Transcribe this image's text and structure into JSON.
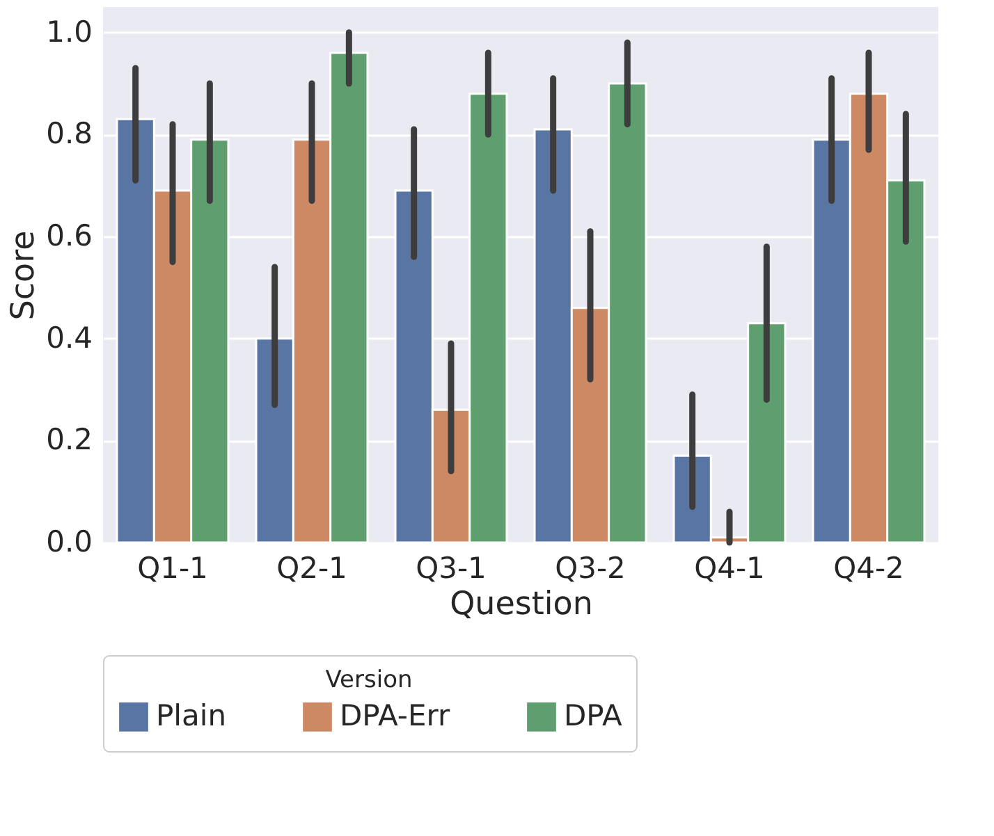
{
  "chart_data": {
    "type": "bar",
    "xlabel": "Question",
    "ylabel": "Score",
    "legend_title": "Version",
    "categories": [
      "Q1-1",
      "Q2-1",
      "Q3-1",
      "Q3-2",
      "Q4-1",
      "Q4-2"
    ],
    "series": [
      {
        "name": "Plain",
        "color": "#5875a4",
        "values": [
          0.83,
          0.4,
          0.69,
          0.81,
          0.17,
          0.79
        ],
        "errors": [
          [
            0.71,
            0.93
          ],
          [
            0.27,
            0.54
          ],
          [
            0.56,
            0.81
          ],
          [
            0.69,
            0.91
          ],
          [
            0.07,
            0.29
          ],
          [
            0.67,
            0.91
          ]
        ]
      },
      {
        "name": "DPA-Err",
        "color": "#cc8963",
        "values": [
          0.69,
          0.79,
          0.26,
          0.46,
          0.01,
          0.88
        ],
        "errors": [
          [
            0.55,
            0.82
          ],
          [
            0.67,
            0.9
          ],
          [
            0.14,
            0.39
          ],
          [
            0.32,
            0.61
          ],
          [
            0.0,
            0.06
          ],
          [
            0.77,
            0.96
          ]
        ]
      },
      {
        "name": "DPA",
        "color": "#5f9e6e",
        "values": [
          0.79,
          0.96,
          0.88,
          0.9,
          0.43,
          0.71
        ],
        "errors": [
          [
            0.67,
            0.9
          ],
          [
            0.9,
            1.0
          ],
          [
            0.8,
            0.96
          ],
          [
            0.82,
            0.98
          ],
          [
            0.28,
            0.58
          ],
          [
            0.59,
            0.84
          ]
        ]
      }
    ],
    "ylim": [
      0,
      1.05
    ],
    "yticks": [
      {
        "value": 0,
        "label": "0.0"
      },
      0.2,
      0.4,
      0.6,
      0.8,
      {
        "value": 1,
        "label": "1.0"
      }
    ],
    "grid": "y",
    "legend": "bottom"
  }
}
